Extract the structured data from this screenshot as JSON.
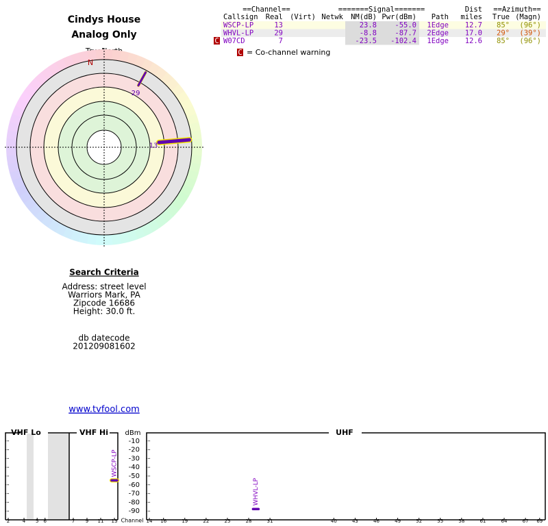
{
  "header": {
    "title": "Cindys House",
    "subtitle": "Analog Only"
  },
  "polar": {
    "north_label": "TrueNorth",
    "north": "N",
    "markers": [
      {
        "label": "29",
        "azimuth": 29,
        "nm": -8.8
      },
      {
        "label": "13",
        "azimuth": 85,
        "nm": 23.8
      }
    ]
  },
  "table": {
    "group_headers": [
      "==Channel==",
      "=======Signal=======",
      "Dist",
      "==Azimuth=="
    ],
    "columns": [
      "Callsign",
      "Real",
      "(Virt)",
      "Netwk",
      "NM(dB)",
      "Pwr(dBm)",
      "Path",
      "miles",
      "True",
      "(Magn)"
    ],
    "rows": [
      {
        "callsign": "WSCP-LP",
        "real": "13",
        "nm": "23.8",
        "pwr": "-55.0",
        "path": "1Edge",
        "miles": "12.7",
        "true": "85°",
        "magn": "(96°)"
      },
      {
        "callsign": "WHVL-LP",
        "real": "29",
        "nm": "-8.8",
        "pwr": "-87.7",
        "path": "2Edge",
        "miles": "17.0",
        "true": "29°",
        "magn": "(39°)"
      },
      {
        "callsign": "W07CD",
        "real": "7",
        "nm": "-23.5",
        "pwr": "-102.4",
        "path": "1Edge",
        "miles": "12.6",
        "true": "85°",
        "magn": "(96°)",
        "flag": "C"
      }
    ]
  },
  "legend": {
    "flag": "C",
    "text": "= Co-channel warning"
  },
  "search": {
    "title": "Search Criteria",
    "lines": [
      "Address: street level",
      "Warriors Mark, PA",
      "Zipcode 16686",
      "Height: 30.0 ft."
    ],
    "datecode_label": "db datecode",
    "datecode": "201209081602",
    "link": "www.tvfool.com"
  },
  "spectrum": {
    "bands": [
      "VHF Lo",
      "VHF Hi",
      "UHF"
    ],
    "y_label": "dBm",
    "x_label": "Channel",
    "ylim": [
      -100,
      0
    ],
    "yticks": [
      -10,
      -20,
      -30,
      -40,
      -50,
      -60,
      -70,
      -80,
      -90
    ],
    "vhf_lo_ticks": [
      2,
      4,
      5,
      6
    ],
    "vhf_hi_ticks": [
      7,
      9,
      11,
      13
    ],
    "uhf_ticks": [
      14,
      16,
      19,
      22,
      25,
      28,
      31,
      40,
      43,
      46,
      49,
      52,
      55,
      58,
      61,
      64,
      67,
      69
    ],
    "stations": [
      {
        "name": "WSCP-LP",
        "channel": 13,
        "pwr": -55.0
      },
      {
        "name": "WHVL-LP",
        "channel": 29,
        "pwr": -87.7
      }
    ]
  }
}
